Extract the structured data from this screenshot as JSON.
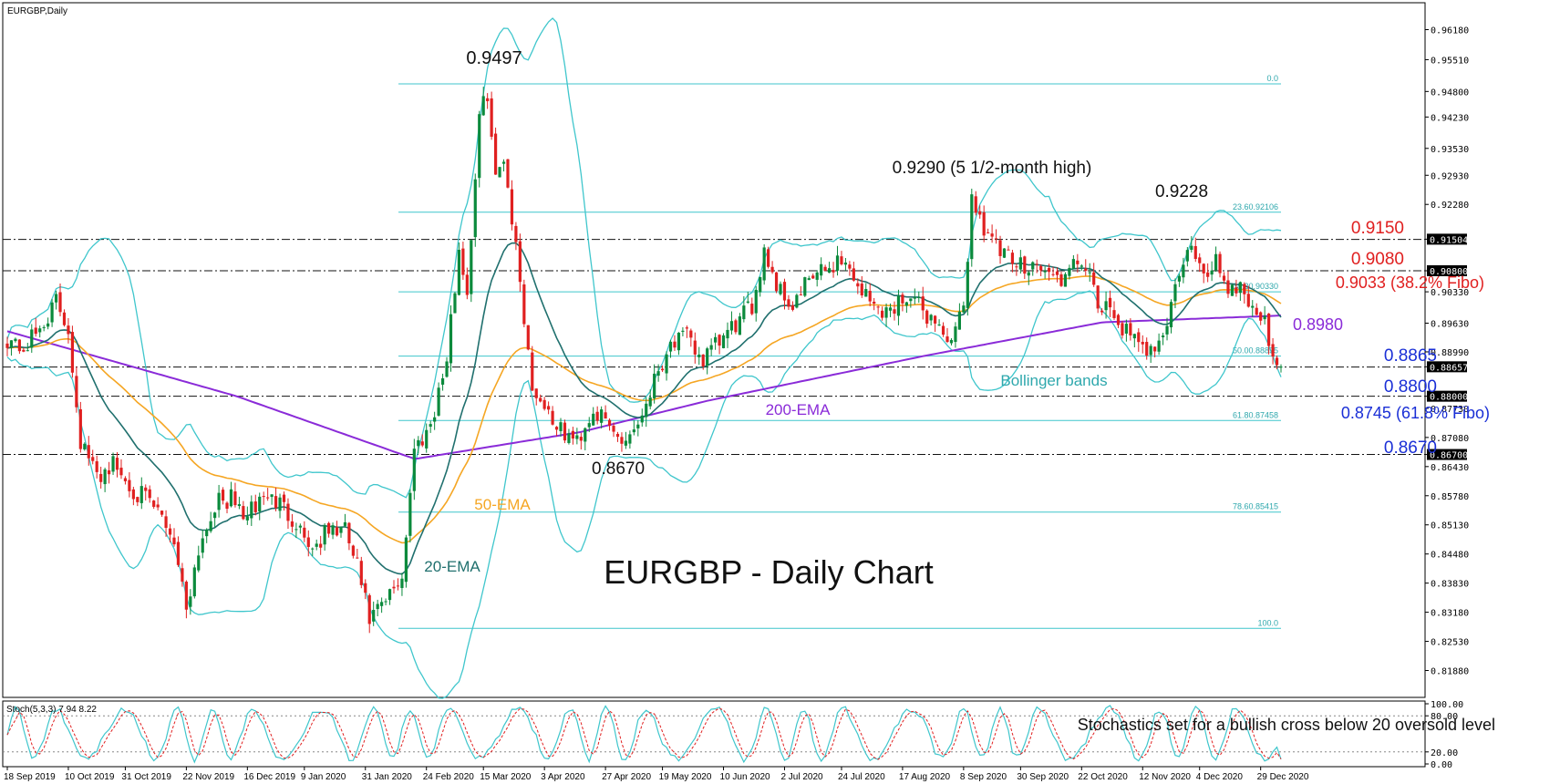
{
  "window_title": "EURGBP,Daily",
  "chart_title": "EURGBP - Daily Chart",
  "chart_data": {
    "type": "candlestick",
    "symbol": "EURGBP",
    "timeframe": "Daily",
    "ylim": [
      0.8128,
      0.9678
    ],
    "price_ticks": [
      "0.96180",
      "0.95510",
      "0.94800",
      "0.94230",
      "0.93530",
      "0.92930",
      "0.92280",
      "0.91504",
      "0.90800",
      "0.90330",
      "0.89630",
      "0.88990",
      "0.88657",
      "0.88000",
      "0.87730",
      "0.87080",
      "0.86700",
      "0.86430",
      "0.85780",
      "0.85130",
      "0.84480",
      "0.83830",
      "0.83180",
      "0.82530",
      "0.81880"
    ],
    "date_labels": [
      "18 Sep 2019",
      "10 Oct 2019",
      "31 Oct 2019",
      "22 Nov 2019",
      "16 Dec 2019",
      "9 Jan 2020",
      "31 Jan 2020",
      "24 Feb 2020",
      "15 Mar 2020",
      "3 Apr 2020",
      "27 Apr 2020",
      "19 May 2020",
      "10 Jun 2020",
      "2 Jul 2020",
      "24 Jul 2020",
      "17 Aug 2020",
      "8 Sep 2020",
      "30 Sep 2020",
      "22 Oct 2020",
      "12 Nov 2020",
      "4 Dec 2020",
      "29 Dec 2020"
    ],
    "close_path": [
      [
        0,
        0.893
      ],
      [
        4,
        0.8905
      ],
      [
        8,
        0.895
      ],
      [
        12,
        0.901
      ],
      [
        15,
        0.895
      ],
      [
        18,
        0.87
      ],
      [
        22,
        0.862
      ],
      [
        26,
        0.865
      ],
      [
        30,
        0.86
      ],
      [
        34,
        0.857
      ],
      [
        38,
        0.853
      ],
      [
        41,
        0.848
      ],
      [
        44,
        0.833
      ],
      [
        47,
        0.846
      ],
      [
        51,
        0.856
      ],
      [
        55,
        0.857
      ],
      [
        59,
        0.853
      ],
      [
        63,
        0.858
      ],
      [
        67,
        0.856
      ],
      [
        71,
        0.852
      ],
      [
        75,
        0.846
      ],
      [
        79,
        0.85
      ],
      [
        83,
        0.85
      ],
      [
        86,
        0.842
      ],
      [
        89,
        0.83
      ],
      [
        93,
        0.834
      ],
      [
        97,
        0.84
      ],
      [
        100,
        0.868
      ],
      [
        104,
        0.874
      ],
      [
        108,
        0.888
      ],
      [
        111,
        0.913
      ],
      [
        113,
        0.903
      ],
      [
        116,
        0.942
      ],
      [
        118,
        0.948
      ],
      [
        120,
        0.928
      ],
      [
        122,
        0.934
      ],
      [
        126,
        0.906
      ],
      [
        129,
        0.882
      ],
      [
        132,
        0.878
      ],
      [
        136,
        0.872
      ],
      [
        140,
        0.87
      ],
      [
        144,
        0.877
      ],
      [
        148,
        0.873
      ],
      [
        151,
        0.87
      ],
      [
        155,
        0.874
      ],
      [
        159,
        0.884
      ],
      [
        163,
        0.892
      ],
      [
        167,
        0.893
      ],
      [
        171,
        0.888
      ],
      [
        175,
        0.892
      ],
      [
        179,
        0.896
      ],
      [
        183,
        0.9
      ],
      [
        186,
        0.913
      ],
      [
        189,
        0.905
      ],
      [
        193,
        0.9
      ],
      [
        197,
        0.906
      ],
      [
        201,
        0.908
      ],
      [
        205,
        0.911
      ],
      [
        209,
        0.905
      ],
      [
        213,
        0.9
      ],
      [
        217,
        0.899
      ],
      [
        221,
        0.903
      ],
      [
        225,
        0.899
      ],
      [
        229,
        0.896
      ],
      [
        232,
        0.891
      ],
      [
        235,
        0.9
      ],
      [
        237,
        0.924
      ],
      [
        240,
        0.918
      ],
      [
        244,
        0.912
      ],
      [
        248,
        0.909
      ],
      [
        252,
        0.91
      ],
      [
        256,
        0.907
      ],
      [
        260,
        0.906
      ],
      [
        264,
        0.911
      ],
      [
        268,
        0.9
      ],
      [
        272,
        0.898
      ],
      [
        276,
        0.893
      ],
      [
        279,
        0.89
      ],
      [
        282,
        0.892
      ],
      [
        285,
        0.896
      ],
      [
        288,
        0.908
      ],
      [
        291,
        0.913
      ],
      [
        294,
        0.906
      ],
      [
        297,
        0.911
      ],
      [
        300,
        0.904
      ],
      [
        303,
        0.905
      ],
      [
        306,
        0.9
      ],
      [
        309,
        0.896
      ],
      [
        312,
        0.888
      ],
      [
        313,
        0.8866
      ]
    ],
    "indicators": [
      {
        "name": "20-EMA",
        "color": "#20706e"
      },
      {
        "name": "50-EMA",
        "color": "#f5a623"
      },
      {
        "name": "200-EMA",
        "color": "#8a2bd8"
      },
      {
        "name": "Bollinger bands",
        "color": "#3fc6cc"
      }
    ],
    "candle_colors": {
      "up": "#0b8a3c",
      "down": "#e02020"
    },
    "fibonacci": {
      "color": "#3fc6cc",
      "levels": [
        {
          "label": "0.0",
          "value": 0.9497
        },
        {
          "label": "23.60.92106",
          "value": 0.92106
        },
        {
          "label": "38.20.90330",
          "value": 0.9033
        },
        {
          "label": "50.00.88895",
          "value": 0.88895
        },
        {
          "label": "61.80.87458",
          "value": 0.87458
        },
        {
          "label": "78.60.85415",
          "value": 0.85415
        },
        {
          "label": "100.0",
          "value": 0.8282
        }
      ]
    },
    "horizontal_levels": [
      {
        "label": "0.9150",
        "value": 0.915,
        "color": "#e02020",
        "tick": "0.91504"
      },
      {
        "label": "0.9080",
        "value": 0.908,
        "color": "#e02020",
        "tick": "0.90800"
      },
      {
        "label": "0.9033 (38.2% Fibo)",
        "value": 0.9033,
        "color": "#e02020",
        "tick": ""
      },
      {
        "label": "0.8865",
        "value": 0.8865,
        "color": "#1a2fd6",
        "tick": "0.88657"
      },
      {
        "label": "0.8800",
        "value": 0.88,
        "color": "#1a2fd6",
        "tick": "0.88000"
      },
      {
        "label": "0.8745 (61.8% Fibo)",
        "value": 0.8745,
        "color": "#1a2fd6",
        "tick": ""
      },
      {
        "label": "0.8670",
        "value": 0.867,
        "color": "#1a2fd6",
        "tick": "0.86700"
      }
    ],
    "ema200_label": "0.8980",
    "annotations": [
      {
        "text": "0.9497",
        "color": "#111111"
      },
      {
        "text": "0.9290 (5 1/2-month high)",
        "color": "#111111"
      },
      {
        "text": "0.9228",
        "color": "#111111"
      },
      {
        "text": "0.8670",
        "color": "#111111"
      },
      {
        "text": "Bollinger bands",
        "color": "#2fa8ad"
      },
      {
        "text": "200-EMA",
        "color": "#8a2bd8"
      },
      {
        "text": "50-EMA",
        "color": "#f5a623"
      },
      {
        "text": "20-EMA",
        "color": "#20706e"
      }
    ],
    "stochastic": {
      "label": "Stoch(5,3,3) 7.94 8.22",
      "k": 7.94,
      "d": 8.22,
      "ticks": [
        "100.00",
        "80.00",
        "20.00",
        "0.00"
      ],
      "note": "Stochastics set for a bullish cross below 20 oversold level",
      "colors": {
        "k": "#3fc6cc",
        "d": "#e02020"
      }
    }
  }
}
